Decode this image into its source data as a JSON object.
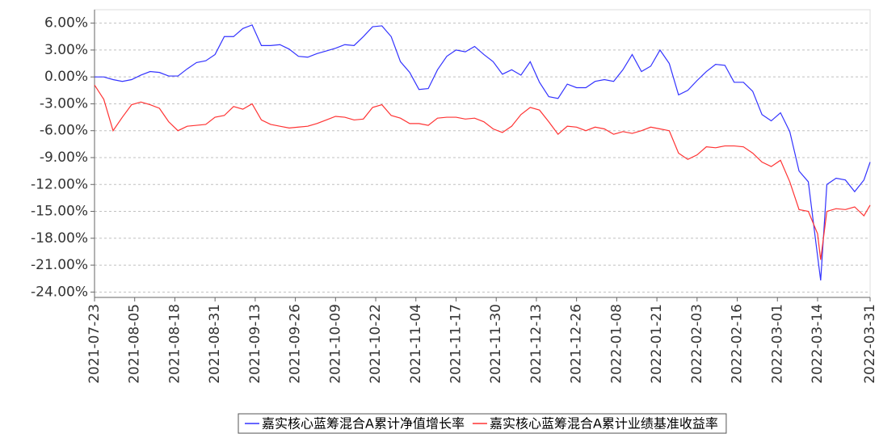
{
  "chart_data": {
    "type": "line",
    "x": [
      "2021-07-23",
      "2021-07-26",
      "2021-07-29",
      "2021-08-01",
      "2021-08-04",
      "2021-08-07",
      "2021-08-10",
      "2021-08-13",
      "2021-08-16",
      "2021-08-19",
      "2021-08-22",
      "2021-08-25",
      "2021-08-28",
      "2021-08-31",
      "2021-09-03",
      "2021-09-06",
      "2021-09-09",
      "2021-09-12",
      "2021-09-15",
      "2021-09-18",
      "2021-09-21",
      "2021-09-24",
      "2021-09-27",
      "2021-09-30",
      "2021-10-03",
      "2021-10-06",
      "2021-10-09",
      "2021-10-12",
      "2021-10-15",
      "2021-10-18",
      "2021-10-21",
      "2021-10-24",
      "2021-10-27",
      "2021-10-30",
      "2021-11-02",
      "2021-11-05",
      "2021-11-08",
      "2021-11-11",
      "2021-11-14",
      "2021-11-17",
      "2021-11-20",
      "2021-11-23",
      "2021-11-26",
      "2021-11-29",
      "2021-12-02",
      "2021-12-05",
      "2021-12-08",
      "2021-12-11",
      "2021-12-14",
      "2021-12-17",
      "2021-12-20",
      "2021-12-23",
      "2021-12-26",
      "2021-12-29",
      "2022-01-01",
      "2022-01-04",
      "2022-01-07",
      "2022-01-10",
      "2022-01-13",
      "2022-01-16",
      "2022-01-19",
      "2022-01-22",
      "2022-01-25",
      "2022-01-28",
      "2022-01-31",
      "2022-02-03",
      "2022-02-06",
      "2022-02-09",
      "2022-02-12",
      "2022-02-15",
      "2022-02-18",
      "2022-02-21",
      "2022-02-24",
      "2022-02-27",
      "2022-03-02",
      "2022-03-05",
      "2022-03-08",
      "2022-03-11",
      "2022-03-14",
      "2022-03-15",
      "2022-03-17",
      "2022-03-20",
      "2022-03-23",
      "2022-03-26",
      "2022-03-29",
      "2022-03-31"
    ],
    "series": [
      {
        "name": "嘉实核心蓝筹混合A累计净值增长率",
        "color": "#3333ff",
        "values": [
          0,
          0,
          -0.3,
          -0.5,
          -0.3,
          0.2,
          0.6,
          0.5,
          0.1,
          0.1,
          0.9,
          1.6,
          1.8,
          2.5,
          4.5,
          4.5,
          5.4,
          5.8,
          3.5,
          3.5,
          3.6,
          3.1,
          2.3,
          2.2,
          2.6,
          2.9,
          3.2,
          3.6,
          3.5,
          4.5,
          5.6,
          5.7,
          4.5,
          1.7,
          0.5,
          -1.4,
          -1.3,
          0.8,
          2.3,
          3.0,
          2.8,
          3.4,
          2.5,
          1.7,
          0.3,
          0.8,
          0.2,
          1.7,
          -0.6,
          -2.2,
          -2.4,
          -0.8,
          -1.2,
          -1.2,
          -0.5,
          -0.3,
          -0.5,
          0.8,
          2.5,
          0.6,
          1.2,
          3.0,
          1.5,
          -2.0,
          -1.5,
          -0.4,
          0.6,
          1.4,
          1.3,
          -0.6,
          -0.6,
          -1.6,
          -4.2,
          -4.9,
          -4.0,
          -6.1,
          -10.5,
          -11.7,
          -20.0,
          -22.7,
          -12.0,
          -11.3,
          -11.5,
          -12.8,
          -11.5,
          -9.5
        ]
      },
      {
        "name": "嘉实核心蓝筹混合A累计业绩基准收益率",
        "color": "#ff3333",
        "values": [
          -0.9,
          -2.5,
          -6.0,
          -4.5,
          -3.1,
          -2.8,
          -3.1,
          -3.5,
          -5.0,
          -6.0,
          -5.5,
          -5.4,
          -5.3,
          -4.5,
          -4.3,
          -3.3,
          -3.6,
          -3.0,
          -4.8,
          -5.3,
          -5.5,
          -5.7,
          -5.6,
          -5.5,
          -5.2,
          -4.8,
          -4.4,
          -4.5,
          -4.8,
          -4.7,
          -3.4,
          -3.1,
          -4.3,
          -4.6,
          -5.2,
          -5.2,
          -5.4,
          -4.6,
          -4.5,
          -4.5,
          -4.7,
          -4.6,
          -5.0,
          -5.8,
          -6.2,
          -5.5,
          -4.2,
          -3.4,
          -3.7,
          -5.0,
          -6.4,
          -5.5,
          -5.6,
          -6.0,
          -5.6,
          -5.8,
          -6.4,
          -6.1,
          -6.3,
          -6.0,
          -5.6,
          -5.8,
          -6.0,
          -8.5,
          -9.2,
          -8.7,
          -7.8,
          -7.9,
          -7.7,
          -7.7,
          -7.8,
          -8.5,
          -9.5,
          -10.0,
          -9.3,
          -11.7,
          -14.8,
          -15.0,
          -17.5,
          -20.4,
          -15.0,
          -14.7,
          -14.8,
          -14.5,
          -15.5,
          -14.3
        ]
      }
    ],
    "xlim": [
      "2021-07-23",
      "2022-03-31"
    ],
    "xticks": [
      "2021-07-23",
      "2021-08-05",
      "2021-08-18",
      "2021-08-31",
      "2021-09-13",
      "2021-09-26",
      "2021-10-09",
      "2021-10-22",
      "2021-11-04",
      "2021-11-17",
      "2021-11-30",
      "2021-12-13",
      "2021-12-26",
      "2022-01-08",
      "2022-01-21",
      "2022-02-03",
      "2022-02-16",
      "2022-03-01",
      "2022-03-14",
      "2022-03-31"
    ],
    "ylim": [
      -24.6,
      7.5
    ],
    "yticks": [
      {
        "value": 6,
        "label": "6.00%"
      },
      {
        "value": 3,
        "label": "3.00%"
      },
      {
        "value": 0,
        "label": "0.00%"
      },
      {
        "value": -3,
        "label": "-3.00%"
      },
      {
        "value": -6,
        "label": "-6.00%"
      },
      {
        "value": -9,
        "label": "-9.00%"
      },
      {
        "value": -12,
        "label": "-12.00%"
      },
      {
        "value": -15,
        "label": "-15.00%"
      },
      {
        "value": -18,
        "label": "-18.00%"
      },
      {
        "value": -21,
        "label": "-21.00%"
      },
      {
        "value": -24,
        "label": "-24.00%"
      }
    ],
    "grid": true,
    "legend": "bottom"
  }
}
